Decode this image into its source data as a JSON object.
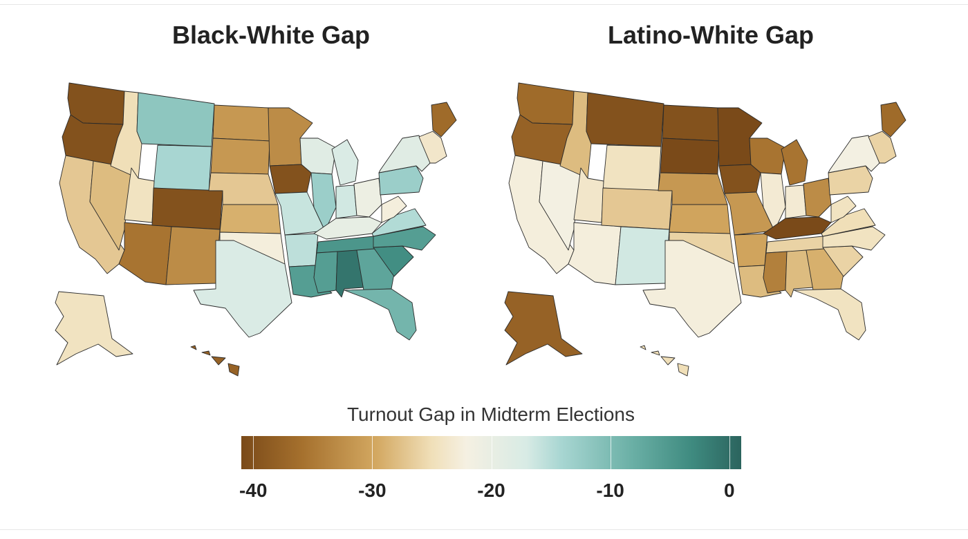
{
  "panels": [
    {
      "title": "Black-White Gap",
      "values": {
        "WA": -40,
        "OR": -40,
        "CA": -29,
        "NV": -30,
        "ID": -27,
        "MT": -11,
        "WY": -13,
        "UT": -26,
        "AZ": -36,
        "CO": -40,
        "NM": -34,
        "ND": -33,
        "SD": -33,
        "NE": -29,
        "KS": -31,
        "OK": -23,
        "TX": -18,
        "MN": -34,
        "IA": -40,
        "MO": -16,
        "AR": -15,
        "LA": -6,
        "WI": -19,
        "IL": -12,
        "MI": -18,
        "IN": -17,
        "OH": -21,
        "KY": -20,
        "TN": -5,
        "MS": -6,
        "AL": -1,
        "GA": -7,
        "FL": -9,
        "SC": -4,
        "NC": -6,
        "VA": -14,
        "WV": -23,
        "PA": -12,
        "NY": -19,
        "ME": -37,
        "NE_SMALL": -25,
        "AK": -26,
        "HI": -38
      }
    },
    {
      "title": "Latino-White Gap",
      "values": {
        "WA": -37,
        "OR": -38,
        "CA": -23,
        "NV": -22,
        "ID": -30,
        "MT": -40,
        "WY": -26,
        "UT": -25,
        "AZ": -23,
        "CO": -29,
        "NM": -17,
        "ND": -40,
        "SD": -41,
        "NE": -33,
        "KS": -32,
        "OK": -28,
        "TX": -23,
        "MN": -41,
        "IA": -40,
        "MO": -33,
        "AR": -32,
        "LA": -30,
        "WI": -36,
        "IL": -24,
        "MI": -36,
        "IN": -24,
        "OH": -34,
        "KY": -41,
        "TN": -28,
        "MS": -35,
        "AL": -30,
        "GA": -31,
        "FL": -26,
        "SC": -28,
        "NC": -26,
        "VA": -27,
        "WV": -26,
        "PA": -28,
        "NY": -22,
        "ME": -37,
        "NE_SMALL": -28,
        "AK": -38,
        "HI": -27
      }
    }
  ],
  "legend": {
    "title": "Turnout Gap in Midterm Elections",
    "min": -41,
    "max": 1,
    "ticks": [
      {
        "value": -40,
        "label": "-40"
      },
      {
        "value": -30,
        "label": "-30"
      },
      {
        "value": -20,
        "label": "-20"
      },
      {
        "value": -10,
        "label": "-10"
      },
      {
        "value": 0,
        "label": "0"
      }
    ],
    "colors": [
      "#7a4a19",
      "#a5702d",
      "#d3a861",
      "#f0dfb8",
      "#f5f0e2",
      "#d8ebe5",
      "#a8d6d2",
      "#6bb0a6",
      "#3f8b80",
      "#2b645e"
    ]
  }
}
